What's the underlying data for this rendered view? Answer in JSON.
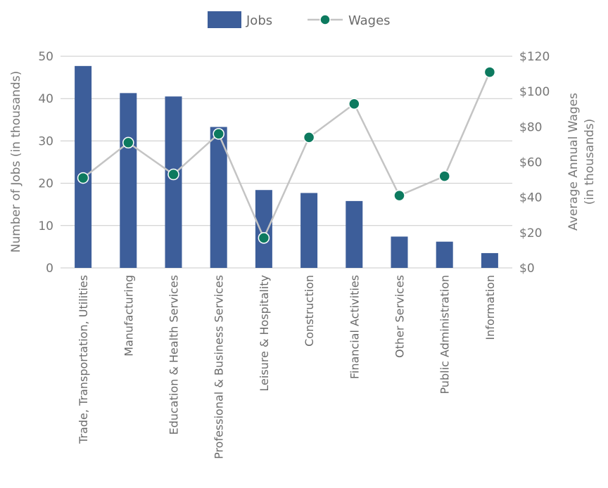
{
  "chart_data": {
    "type": "bar",
    "categories": [
      "Trade, Transportation, Utilities",
      "Manufacturing",
      "Education & Health Services",
      "Professional & Business Services",
      "Leisure & Hospitality",
      "Construction",
      "Financial Activities",
      "Other Services",
      "Public Administration",
      "Information"
    ],
    "series": [
      {
        "name": "Jobs",
        "type": "bar",
        "axis": "left",
        "color": "#3d5e9a",
        "values": [
          47.7,
          41.3,
          40.5,
          33.3,
          18.4,
          17.7,
          15.8,
          7.4,
          6.2,
          3.5
        ]
      },
      {
        "name": "Wages",
        "type": "line",
        "axis": "right",
        "color": "#0d7a5f",
        "line_color": "#c4c4c4",
        "values": [
          51,
          71,
          53,
          76,
          17,
          74,
          93,
          41,
          52,
          111
        ]
      }
    ],
    "ylabel": "Number of Jobs (in thousands)",
    "ylim": [
      0,
      50
    ],
    "yticks": [
      "0",
      "10",
      "20",
      "30",
      "40",
      "50"
    ],
    "y2label": [
      "Average Annual Wages",
      "(in thousands)"
    ],
    "y2lim": [
      0,
      120
    ],
    "y2ticks": [
      "$0",
      "$20",
      "$40",
      "$60",
      "$80",
      "$100",
      "$120"
    ],
    "grid": true,
    "legend": "top-center"
  }
}
